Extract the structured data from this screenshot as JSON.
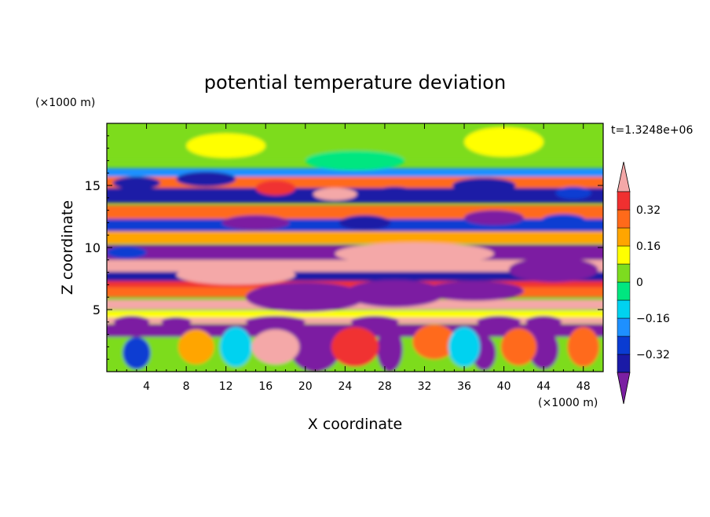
{
  "chart_data": {
    "type": "heatmap",
    "title": "potential temperature deviation",
    "xlabel": "X coordinate",
    "ylabel": "Z coordinate",
    "x_unit": "(×1000 m)",
    "y_unit": "(×1000 m)",
    "time_label": "t=1.3248e+06",
    "xlim": [
      0,
      50
    ],
    "ylim": [
      0,
      20
    ],
    "x_ticks": [
      4,
      8,
      12,
      16,
      20,
      24,
      28,
      32,
      36,
      40,
      44,
      48
    ],
    "y_ticks": [
      5,
      10,
      15
    ],
    "colorbar": {
      "levels": [
        -0.4,
        -0.32,
        -0.24,
        -0.16,
        -0.08,
        0,
        0.08,
        0.16,
        0.24,
        0.32,
        0.4
      ],
      "tick_labels": [
        "0.32",
        "0.16",
        "0",
        "−0.16",
        "−0.32"
      ],
      "tick_values": [
        0.32,
        0.16,
        0,
        -0.16,
        -0.32
      ],
      "colors": [
        "#7b1fa2",
        "#1a1aa6",
        "#0a3cd2",
        "#1e90ff",
        "#00d2f0",
        "#00e680",
        "#7ddc1f",
        "#ffff00",
        "#ffa500",
        "#ff6a1a",
        "#f03030",
        "#f4a8a8"
      ],
      "extend": "both"
    },
    "grid": false,
    "layers": [
      {
        "z": 18.5,
        "thick": 2.8,
        "value": 0.02
      },
      {
        "z": 15.8,
        "thick": 1.2,
        "value": -0.18
      },
      {
        "z": 15.2,
        "thick": 1.0,
        "value": 0.28
      },
      {
        "z": 14.2,
        "thick": 1.2,
        "value": -0.36
      },
      {
        "z": 12.8,
        "thick": 1.2,
        "value": 0.26
      },
      {
        "z": 11.8,
        "thick": 1.0,
        "value": -0.3
      },
      {
        "z": 10.8,
        "thick": 1.0,
        "value": 0.18
      },
      {
        "z": 9.6,
        "thick": 1.2,
        "value": -0.4
      },
      {
        "z": 8.5,
        "thick": 1.0,
        "value": 0.4
      },
      {
        "z": 7.6,
        "thick": 0.9,
        "value": -0.38
      },
      {
        "z": 7.0,
        "thick": 0.6,
        "value": 0.36
      },
      {
        "z": 6.4,
        "thick": 0.8,
        "value": 0.3
      },
      {
        "z": 5.4,
        "thick": 0.8,
        "value": 0.4
      },
      {
        "z": 4.6,
        "thick": 0.6,
        "value": 0.08
      },
      {
        "z": 4.1,
        "thick": 0.5,
        "value": 0.4
      },
      {
        "z": 3.2,
        "thick": 1.2,
        "value": -0.4
      },
      {
        "z": 1.4,
        "thick": 2.8,
        "value": 0.05
      }
    ],
    "features": [
      {
        "x": 3,
        "z": 15.2,
        "rx": 2.4,
        "rz": 0.5,
        "value": -0.36
      },
      {
        "x": 10,
        "z": 15.5,
        "rx": 3.0,
        "rz": 0.6,
        "value": -0.36
      },
      {
        "x": 17,
        "z": 14.8,
        "rx": 2.0,
        "rz": 0.6,
        "value": 0.36
      },
      {
        "x": 23,
        "z": 14.3,
        "rx": 2.2,
        "rz": 0.5,
        "value": 0.4
      },
      {
        "x": 29,
        "z": 14.4,
        "rx": 2.0,
        "rz": 0.5,
        "value": -0.36
      },
      {
        "x": 38,
        "z": 15.0,
        "rx": 3.2,
        "rz": 0.6,
        "value": -0.36
      },
      {
        "x": 47,
        "z": 14.4,
        "rx": 1.8,
        "rz": 0.5,
        "value": -0.3
      },
      {
        "x": 15,
        "z": 12.0,
        "rx": 3.4,
        "rz": 0.6,
        "value": -0.4
      },
      {
        "x": 26,
        "z": 12.0,
        "rx": 2.6,
        "rz": 0.6,
        "value": -0.36
      },
      {
        "x": 39,
        "z": 12.4,
        "rx": 3.0,
        "rz": 0.6,
        "value": -0.4
      },
      {
        "x": 46,
        "z": 12.2,
        "rx": 2.2,
        "rz": 0.5,
        "value": -0.3
      },
      {
        "x": 31,
        "z": 9.5,
        "rx": 8.0,
        "rz": 0.9,
        "value": 0.4
      },
      {
        "x": 13,
        "z": 7.8,
        "rx": 6.0,
        "rz": 0.8,
        "value": 0.4
      },
      {
        "x": 20,
        "z": 6.0,
        "rx": 6.0,
        "rz": 1.2,
        "value": -0.4
      },
      {
        "x": 29,
        "z": 6.3,
        "rx": 5.0,
        "rz": 1.1,
        "value": -0.4
      },
      {
        "x": 37,
        "z": 6.5,
        "rx": 5.0,
        "rz": 0.8,
        "value": -0.4
      },
      {
        "x": 45,
        "z": 8.2,
        "rx": 4.5,
        "rz": 1.0,
        "value": -0.4
      },
      {
        "x": 2,
        "z": 9.6,
        "rx": 2.0,
        "rz": 0.5,
        "value": -0.3
      },
      {
        "x": 2.5,
        "z": 4.0,
        "rx": 1.8,
        "rz": 0.5,
        "value": -0.4
      },
      {
        "x": 7,
        "z": 4.0,
        "rx": 1.5,
        "rz": 0.4,
        "value": -0.4
      },
      {
        "x": 17,
        "z": 4.0,
        "rx": 3.0,
        "rz": 0.5,
        "value": -0.4
      },
      {
        "x": 27,
        "z": 4.0,
        "rx": 2.4,
        "rz": 0.5,
        "value": -0.4
      },
      {
        "x": 39.5,
        "z": 4.0,
        "rx": 2.2,
        "rz": 0.5,
        "value": -0.4
      },
      {
        "x": 44,
        "z": 4.0,
        "rx": 1.8,
        "rz": 0.5,
        "value": -0.4
      },
      {
        "x": 21,
        "z": 1.8,
        "rx": 2.5,
        "rz": 1.8,
        "value": -0.4
      },
      {
        "x": 28.5,
        "z": 1.8,
        "rx": 1.3,
        "rz": 1.8,
        "value": -0.4
      },
      {
        "x": 38,
        "z": 1.5,
        "rx": 1.2,
        "rz": 1.4,
        "value": -0.4
      },
      {
        "x": 44,
        "z": 1.8,
        "rx": 1.5,
        "rz": 1.6,
        "value": -0.4
      },
      {
        "x": 3,
        "z": 1.5,
        "rx": 1.4,
        "rz": 1.3,
        "value": -0.28
      },
      {
        "x": 9,
        "z": 2.0,
        "rx": 1.8,
        "rz": 1.4,
        "value": 0.22
      },
      {
        "x": 17,
        "z": 2.0,
        "rx": 2.4,
        "rz": 1.4,
        "value": 0.4
      },
      {
        "x": 25,
        "z": 2.0,
        "rx": 2.4,
        "rz": 1.6,
        "value": 0.36
      },
      {
        "x": 33,
        "z": 2.4,
        "rx": 2.2,
        "rz": 1.4,
        "value": 0.3
      },
      {
        "x": 41.5,
        "z": 2.0,
        "rx": 1.8,
        "rz": 1.5,
        "value": 0.24
      },
      {
        "x": 48,
        "z": 2.0,
        "rx": 1.6,
        "rz": 1.6,
        "value": 0.3
      },
      {
        "x": 13,
        "z": 2.0,
        "rx": 1.6,
        "rz": 1.6,
        "value": -0.1
      },
      {
        "x": 36,
        "z": 2.0,
        "rx": 1.6,
        "rz": 1.6,
        "value": -0.14
      },
      {
        "x": 12,
        "z": 18.2,
        "rx": 4.0,
        "rz": 1.0,
        "value": 0.14
      },
      {
        "x": 40,
        "z": 18.5,
        "rx": 4.0,
        "rz": 1.2,
        "value": 0.12
      },
      {
        "x": 25,
        "z": 17.0,
        "rx": 5.0,
        "rz": 0.8,
        "value": -0.08
      }
    ]
  }
}
